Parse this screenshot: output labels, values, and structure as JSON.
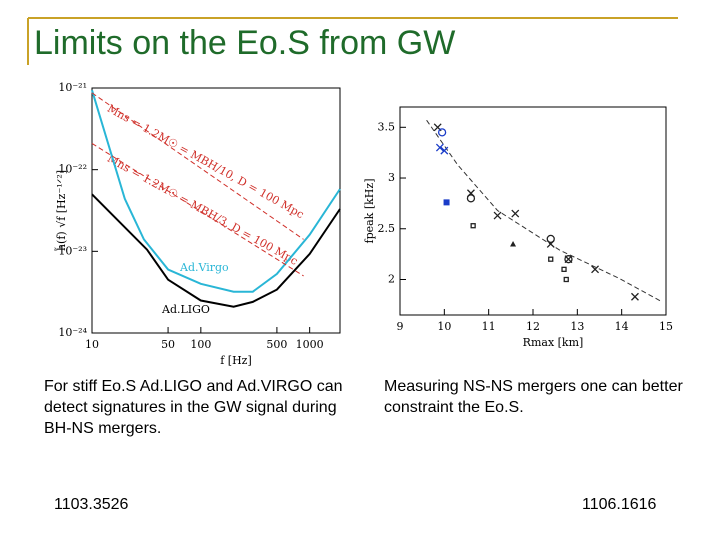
{
  "title": "Limits on the Eo.S from GW",
  "captions": [
    "For stiff Eo.S Ad.LIGO and Ad.VIRGO can detect signatures in the GW signal during BH-NS mergers.",
    "Measuring NS-NS mergers one can better constraint the Eo.S."
  ],
  "references": [
    "1103.3526",
    "1106.1616"
  ],
  "chart_data": [
    {
      "type": "line",
      "xlog": true,
      "ylog": true,
      "xlabel": "f [Hz]",
      "ylabel": "h̃(f) √f  [Hz⁻¹ᐟ²]",
      "xlim": [
        10,
        1900
      ],
      "ylim": [
        1e-24,
        1e-21
      ],
      "xticks": [
        10,
        50,
        100,
        500,
        1000
      ],
      "yticks": [
        {
          "value": 1e-24,
          "label": "10⁻²⁴"
        },
        {
          "value": 1e-23,
          "label": "10⁻²³"
        },
        {
          "value": 1e-22,
          "label": "10⁻²²"
        },
        {
          "value": 1e-21,
          "label": "10⁻²¹"
        }
      ],
      "annotations": [
        "Ad.Virgo",
        "Ad.LIGO",
        "Mns = 1.2M☉ = MBH/10, D = 100 Mpc",
        "Mns = 1.2M☉ = MBH/3, D = 100 Mpc"
      ],
      "series": [
        {
          "color": "#000000",
          "x": [
            10,
            32,
            50,
            100,
            200,
            300,
            500,
            1000,
            1900
          ],
          "values": [
            5e-23,
            1.05e-23,
            4.5e-24,
            2.5e-24,
            2.1e-24,
            2.4e-24,
            3.4e-24,
            9.3e-24,
            3.3e-23
          ]
        },
        {
          "color": "#29b6d6",
          "x": [
            10,
            20,
            30,
            50,
            100,
            200,
            300,
            500,
            1000,
            1900
          ],
          "values": [
            9.4e-22,
            4.4e-23,
            1.4e-23,
            6e-24,
            4e-24,
            3.2e-24,
            3.2e-24,
            5.3e-24,
            1.6e-23,
            5.8e-23
          ]
        },
        {
          "color": "#d0302a",
          "dashed": true,
          "x": [
            10,
            880
          ],
          "values": [
            8.7e-22,
            1.4e-23
          ]
        },
        {
          "color": "#d0302a",
          "dashed": true,
          "x": [
            10,
            880
          ],
          "values": [
            2.1e-22,
            5e-24
          ]
        }
      ]
    },
    {
      "type": "scatter",
      "xlabel": "Rmax [km]",
      "ylabel": "fpeak [kHz]",
      "xlim": [
        9,
        15
      ],
      "ylim": [
        1.65,
        3.7
      ],
      "xticks": [
        9,
        10,
        11,
        12,
        13,
        14,
        15
      ],
      "yticks": [
        2,
        2.5,
        3,
        3.5
      ],
      "series": [
        {
          "marker": "line",
          "dashed": true,
          "color": "#333333",
          "x": [
            9.6,
            10.3,
            11.2,
            12.6,
            13.95,
            14.87
          ],
          "values": [
            3.57,
            3.13,
            2.68,
            2.29,
            2.01,
            1.79
          ]
        },
        {
          "marker": "x",
          "color": "#222222",
          "x": [
            9.85,
            10.6,
            11.2,
            11.6,
            12.4,
            12.8,
            13.4,
            14.3
          ],
          "values": [
            3.5,
            2.85,
            2.63,
            2.65,
            2.35,
            2.2,
            2.1,
            1.83
          ]
        },
        {
          "marker": "x",
          "color": "#1a3cc8",
          "x": [
            9.9,
            10.0
          ],
          "values": [
            3.3,
            3.27
          ]
        },
        {
          "marker": "circle",
          "color": "#1a3cc8",
          "x": [
            9.95
          ],
          "values": [
            3.45
          ]
        },
        {
          "marker": "circle",
          "color": "#222222",
          "x": [
            10.6,
            12.4,
            12.8
          ],
          "values": [
            2.8,
            2.4,
            2.2
          ]
        },
        {
          "marker": "square",
          "color": "#222222",
          "x": [
            10.65,
            12.4,
            12.7,
            12.75
          ],
          "values": [
            2.53,
            2.2,
            2.1,
            2.0
          ]
        },
        {
          "marker": "filled-square",
          "color": "#1a3cc8",
          "x": [
            10.05
          ],
          "values": [
            2.76
          ]
        },
        {
          "marker": "triangle",
          "color": "#222222",
          "x": [
            11.55
          ],
          "values": [
            2.35
          ]
        }
      ]
    }
  ]
}
